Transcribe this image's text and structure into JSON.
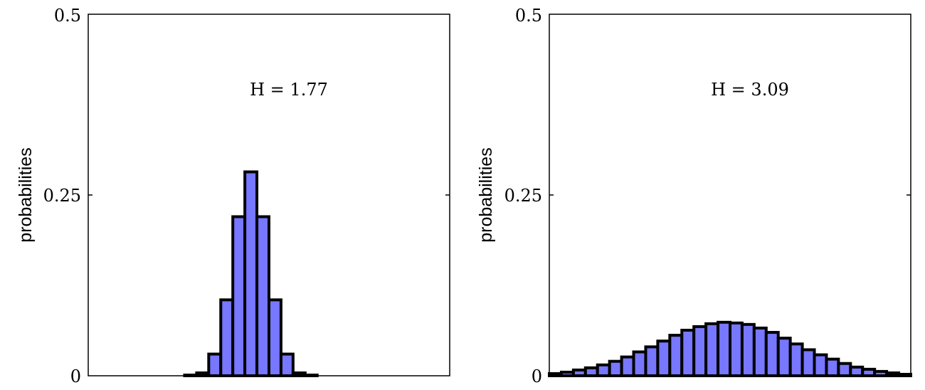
{
  "chart_data": [
    {
      "type": "bar",
      "ylabel": "probabilities",
      "ylim": [
        0,
        0.5
      ],
      "yticks": [
        "0",
        "0.25",
        "0.5"
      ],
      "annotation": "H = 1.77",
      "values": [
        0,
        0,
        0,
        0,
        0,
        0,
        0,
        0,
        0.001,
        0.004,
        0.03,
        0.105,
        0.22,
        0.282,
        0.22,
        0.105,
        0.03,
        0.004,
        0.001,
        0,
        0,
        0,
        0,
        0,
        0,
        0,
        0,
        0,
        0,
        0
      ],
      "bar_color": "#7777ff",
      "grid": false
    },
    {
      "type": "bar",
      "ylabel": "probabilities",
      "ylim": [
        0,
        0.5
      ],
      "yticks": [
        "0",
        "0.25",
        "0.5"
      ],
      "annotation": "H = 3.09",
      "values": [
        0.003,
        0.005,
        0.008,
        0.011,
        0.015,
        0.02,
        0.026,
        0.033,
        0.04,
        0.048,
        0.056,
        0.063,
        0.068,
        0.072,
        0.074,
        0.073,
        0.071,
        0.066,
        0.06,
        0.052,
        0.044,
        0.036,
        0.029,
        0.023,
        0.017,
        0.012,
        0.009,
        0.006,
        0.004,
        0.002
      ],
      "bar_color": "#7777ff",
      "grid": false
    }
  ]
}
